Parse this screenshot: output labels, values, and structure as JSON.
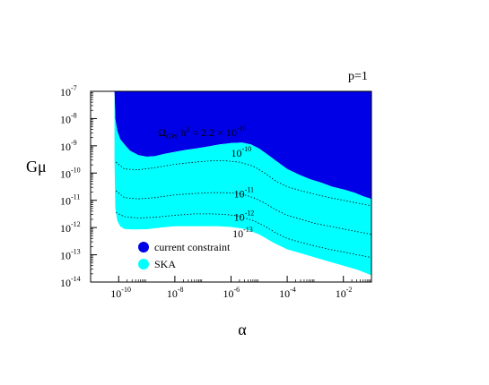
{
  "chart_data": {
    "type": "area",
    "panel_label": "p=1",
    "xlabel": "α",
    "ylabel": "Gμ",
    "x_scale": "log",
    "y_scale": "log",
    "xlim": [
      1e-11,
      0.1
    ],
    "ylim": [
      1e-14,
      1e-07
    ],
    "x_ticks": [
      {
        "base": "10",
        "exp": "-10",
        "value": 1e-10
      },
      {
        "base": "10",
        "exp": "-8",
        "value": 1e-08
      },
      {
        "base": "10",
        "exp": "-6",
        "value": 1e-06
      },
      {
        "base": "10",
        "exp": "-4",
        "value": 0.0001
      },
      {
        "base": "10",
        "exp": "-2",
        "value": 0.01
      }
    ],
    "y_ticks": [
      {
        "base": "10",
        "exp": "-7",
        "value": 1e-07
      },
      {
        "base": "10",
        "exp": "-8",
        "value": 1e-08
      },
      {
        "base": "10",
        "exp": "-9",
        "value": 1e-09
      },
      {
        "base": "10",
        "exp": "-10",
        "value": 1e-10
      },
      {
        "base": "10",
        "exp": "-11",
        "value": 1e-11
      },
      {
        "base": "10",
        "exp": "-12",
        "value": 1e-12
      },
      {
        "base": "10",
        "exp": "-13",
        "value": 1e-13
      },
      {
        "base": "10",
        "exp": "-14",
        "value": 1e-14
      }
    ],
    "legend": [
      {
        "label": "current constraint",
        "color": "#0000e6"
      },
      {
        "label": "SKA",
        "color": "#00ffff"
      }
    ],
    "regions": [
      {
        "name": "current constraint",
        "color": "#0000e6",
        "boundary_log10": {
          "x": [
            -10.15,
            -10.12,
            -10.05,
            -9.95,
            -9.8,
            -9.6,
            -9.3,
            -9.0,
            -8.7,
            -8.4,
            -8.0,
            -7.6,
            -7.2,
            -6.8,
            -6.4,
            -6.0,
            -5.6,
            -5.3,
            -5.0,
            -4.7,
            -4.4,
            -4.0,
            -3.6,
            -3.2,
            -2.8,
            -2.4,
            -2.0,
            -1.6,
            -1.3,
            -1.0
          ],
          "y": [
            -7.0,
            -8.0,
            -8.45,
            -8.75,
            -8.95,
            -9.18,
            -9.34,
            -9.4,
            -9.38,
            -9.3,
            -9.22,
            -9.15,
            -9.09,
            -9.02,
            -8.95,
            -8.9,
            -8.88,
            -8.95,
            -9.1,
            -9.32,
            -9.55,
            -9.85,
            -10.05,
            -10.22,
            -10.35,
            -10.5,
            -10.6,
            -10.72,
            -10.85,
            -10.95
          ]
        }
      },
      {
        "name": "SKA",
        "color": "#00ffff",
        "boundary_log10": {
          "x": [
            -10.15,
            -10.12,
            -10.05,
            -9.95,
            -9.8,
            -9.5,
            -9.0,
            -8.5,
            -8.0,
            -7.5,
            -7.0,
            -6.5,
            -6.0,
            -5.5,
            -5.0,
            -4.5,
            -4.0,
            -3.5,
            -3.0,
            -2.5,
            -2.0,
            -1.5,
            -1.0
          ],
          "y": [
            -9.45,
            -11.3,
            -11.75,
            -11.95,
            -12.05,
            -12.07,
            -12.06,
            -12.0,
            -11.95,
            -11.95,
            -11.95,
            -11.95,
            -11.98,
            -12.05,
            -12.25,
            -12.55,
            -12.8,
            -12.95,
            -13.1,
            -13.25,
            -13.4,
            -13.55,
            -13.75
          ]
        }
      }
    ],
    "contours": [
      {
        "label_main": "Ω",
        "label_sub": "GW",
        "label_mid": " h",
        "label_h_exp": "2",
        "label_eq": " = 2.2 × 10",
        "label_exp": "-10",
        "label_log10_x": -8.6,
        "label_log10_y": -8.65,
        "line_log10": {
          "x": [],
          "y": []
        }
      },
      {
        "label_base": "10",
        "label_exp": "-10",
        "label_log10_x": -6.0,
        "label_log10_y": -9.4,
        "line_log10": {
          "x": [
            -10.1,
            -9.8,
            -9.3,
            -8.7,
            -8.0,
            -7.3,
            -6.7,
            -6.2,
            -5.7,
            -5.2,
            -4.8,
            -4.4,
            -4.0,
            -3.5,
            -3.0,
            -2.5,
            -2.0,
            -1.5,
            -1.0
          ],
          "y": [
            -9.6,
            -9.85,
            -9.88,
            -9.8,
            -9.68,
            -9.6,
            -9.55,
            -9.55,
            -9.6,
            -9.75,
            -10.0,
            -10.3,
            -10.5,
            -10.65,
            -10.78,
            -10.9,
            -11.0,
            -11.1,
            -11.2
          ]
        }
      },
      {
        "label_base": "10",
        "label_exp": "-11",
        "label_log10_x": -5.9,
        "label_log10_y": -10.9,
        "line_log10": {
          "x": [
            -10.1,
            -9.8,
            -9.3,
            -8.7,
            -8.0,
            -7.3,
            -6.7,
            -6.2,
            -5.7,
            -5.2,
            -4.8,
            -4.4,
            -4.0,
            -3.5,
            -3.0,
            -2.5,
            -2.0,
            -1.5,
            -1.0
          ],
          "y": [
            -10.65,
            -10.9,
            -10.95,
            -10.9,
            -10.8,
            -10.75,
            -10.72,
            -10.72,
            -10.75,
            -10.9,
            -11.1,
            -11.35,
            -11.55,
            -11.7,
            -11.85,
            -11.95,
            -12.05,
            -12.15,
            -12.25
          ]
        }
      },
      {
        "label_base": "10",
        "label_exp": "-12",
        "label_log10_x": -5.9,
        "label_log10_y": -11.75,
        "line_log10": {
          "x": [
            -10.1,
            -9.8,
            -9.3,
            -8.7,
            -8.0,
            -7.3,
            -6.7,
            -6.2,
            -5.7,
            -5.2,
            -4.8,
            -4.4,
            -4.0,
            -3.5,
            -3.0,
            -2.5,
            -2.0,
            -1.5,
            -1.0
          ],
          "y": [
            -11.45,
            -11.6,
            -11.65,
            -11.62,
            -11.55,
            -11.5,
            -11.5,
            -11.52,
            -11.58,
            -11.75,
            -11.95,
            -12.2,
            -12.4,
            -12.55,
            -12.68,
            -12.8,
            -12.9,
            -13.0,
            -13.1
          ]
        }
      },
      {
        "label_base": "10",
        "label_exp": "-13",
        "label_log10_x": -5.95,
        "label_log10_y": -12.35,
        "line_log10": {
          "x": [],
          "y": []
        }
      }
    ]
  }
}
